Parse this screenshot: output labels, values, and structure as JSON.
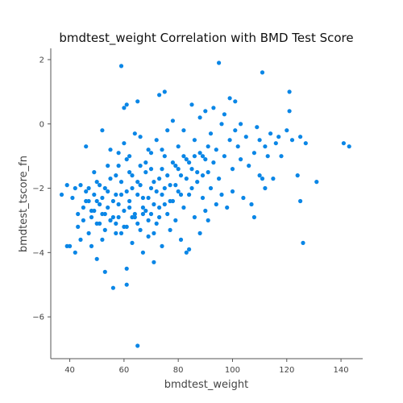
{
  "chart_data": {
    "type": "scatter",
    "title": "bmdtest_weight Correlation with BMD Test Score",
    "xlabel": "bmdtest_weight",
    "ylabel": "bmdtest_tscore_fn",
    "xlim": [
      33,
      148
    ],
    "ylim": [
      -7.3,
      2.35
    ],
    "xticks": [
      40,
      60,
      80,
      100,
      120,
      140
    ],
    "yticks": [
      2,
      0,
      -2,
      -4,
      -6
    ],
    "grid": false,
    "point_color": "#0a86e6",
    "points": [
      {
        "x": 37,
        "y": -2.2
      },
      {
        "x": 39,
        "y": -1.9
      },
      {
        "x": 39,
        "y": -3.8
      },
      {
        "x": 40,
        "y": -3.8
      },
      {
        "x": 41,
        "y": -2.3
      },
      {
        "x": 42,
        "y": -2.0
      },
      {
        "x": 42,
        "y": -4.0
      },
      {
        "x": 43,
        "y": -2.8
      },
      {
        "x": 43,
        "y": -3.2
      },
      {
        "x": 44,
        "y": -1.9
      },
      {
        "x": 44,
        "y": -3.6
      },
      {
        "x": 45,
        "y": -2.6
      },
      {
        "x": 45,
        "y": -3.0
      },
      {
        "x": 46,
        "y": -0.7
      },
      {
        "x": 46,
        "y": -2.1
      },
      {
        "x": 47,
        "y": -3.4
      },
      {
        "x": 47,
        "y": -2.4
      },
      {
        "x": 48,
        "y": -2.7
      },
      {
        "x": 48,
        "y": -3.8
      },
      {
        "x": 49,
        "y": -1.5
      },
      {
        "x": 49,
        "y": -2.2
      },
      {
        "x": 50,
        "y": -3.1
      },
      {
        "x": 50,
        "y": -4.2
      },
      {
        "x": 51,
        "y": -2.5
      },
      {
        "x": 51,
        "y": -1.9
      },
      {
        "x": 52,
        "y": -0.2
      },
      {
        "x": 52,
        "y": -3.6
      },
      {
        "x": 53,
        "y": -4.6
      },
      {
        "x": 53,
        "y": -2.8
      },
      {
        "x": 54,
        "y": -1.3
      },
      {
        "x": 54,
        "y": -2.1
      },
      {
        "x": 55,
        "y": -3.0
      },
      {
        "x": 55,
        "y": -0.8
      },
      {
        "x": 56,
        "y": -5.1
      },
      {
        "x": 56,
        "y": -2.4
      },
      {
        "x": 57,
        "y": -3.4
      },
      {
        "x": 57,
        "y": -1.6
      },
      {
        "x": 58,
        "y": -2.9
      },
      {
        "x": 58,
        "y": -0.9
      },
      {
        "x": 59,
        "y": 1.8
      },
      {
        "x": 59,
        "y": -2.2
      },
      {
        "x": 60,
        "y": -3.2
      },
      {
        "x": 60,
        "y": -0.6
      },
      {
        "x": 60,
        "y": 0.5
      },
      {
        "x": 61,
        "y": -4.5
      },
      {
        "x": 61,
        "y": -1.1
      },
      {
        "x": 61,
        "y": 0.6
      },
      {
        "x": 61,
        "y": -5.0
      },
      {
        "x": 62,
        "y": -2.6
      },
      {
        "x": 62,
        "y": -1.5
      },
      {
        "x": 63,
        "y": -3.7
      },
      {
        "x": 63,
        "y": -2.0
      },
      {
        "x": 64,
        "y": -0.3
      },
      {
        "x": 64,
        "y": -2.9
      },
      {
        "x": 65,
        "y": 0.7
      },
      {
        "x": 65,
        "y": -6.9
      },
      {
        "x": 65,
        "y": -1.8
      },
      {
        "x": 66,
        "y": -3.3
      },
      {
        "x": 66,
        "y": -0.4
      },
      {
        "x": 67,
        "y": -2.3
      },
      {
        "x": 67,
        "y": -4.0
      },
      {
        "x": 68,
        "y": -1.2
      },
      {
        "x": 68,
        "y": -2.7
      },
      {
        "x": 69,
        "y": -0.8
      },
      {
        "x": 69,
        "y": -3.5
      },
      {
        "x": 70,
        "y": -2.0
      },
      {
        "x": 70,
        "y": -1.4
      },
      {
        "x": 71,
        "y": -4.3
      },
      {
        "x": 71,
        "y": -2.5
      },
      {
        "x": 72,
        "y": -0.5
      },
      {
        "x": 72,
        "y": -3.1
      },
      {
        "x": 73,
        "y": 0.9
      },
      {
        "x": 73,
        "y": -1.7
      },
      {
        "x": 74,
        "y": -2.2
      },
      {
        "x": 74,
        "y": -3.8
      },
      {
        "x": 75,
        "y": 1.0
      },
      {
        "x": 75,
        "y": -1.0
      },
      {
        "x": 76,
        "y": -2.8
      },
      {
        "x": 76,
        "y": -0.2
      },
      {
        "x": 77,
        "y": -1.9
      },
      {
        "x": 77,
        "y": -3.3
      },
      {
        "x": 78,
        "y": 0.1
      },
      {
        "x": 78,
        "y": -2.4
      },
      {
        "x": 79,
        "y": -1.3
      },
      {
        "x": 79,
        "y": -3.0
      },
      {
        "x": 80,
        "y": -0.7
      },
      {
        "x": 80,
        "y": -2.1
      },
      {
        "x": 81,
        "y": -3.6
      },
      {
        "x": 81,
        "y": -1.6
      },
      {
        "x": 82,
        "y": -0.2
      },
      {
        "x": 82,
        "y": -2.6
      },
      {
        "x": 83,
        "y": -4.0
      },
      {
        "x": 83,
        "y": -1.1
      },
      {
        "x": 84,
        "y": -3.9
      },
      {
        "x": 84,
        "y": -2.2
      },
      {
        "x": 85,
        "y": 0.6
      },
      {
        "x": 85,
        "y": -1.4
      },
      {
        "x": 86,
        "y": -2.9
      },
      {
        "x": 86,
        "y": -0.5
      },
      {
        "x": 87,
        "y": -1.8
      },
      {
        "x": 88,
        "y": -3.4
      },
      {
        "x": 88,
        "y": 0.2
      },
      {
        "x": 89,
        "y": -2.3
      },
      {
        "x": 89,
        "y": -1.0
      },
      {
        "x": 90,
        "y": -2.7
      },
      {
        "x": 90,
        "y": 0.4
      },
      {
        "x": 91,
        "y": -1.5
      },
      {
        "x": 91,
        "y": -3.0
      },
      {
        "x": 92,
        "y": -0.3
      },
      {
        "x": 92,
        "y": -2.0
      },
      {
        "x": 93,
        "y": 0.5
      },
      {
        "x": 93,
        "y": -1.2
      },
      {
        "x": 94,
        "y": -2.5
      },
      {
        "x": 94,
        "y": -0.8
      },
      {
        "x": 95,
        "y": 1.9
      },
      {
        "x": 95,
        "y": -1.7
      },
      {
        "x": 96,
        "y": 0.0
      },
      {
        "x": 96,
        "y": -2.2
      },
      {
        "x": 97,
        "y": -1.0
      },
      {
        "x": 97,
        "y": 0.3
      },
      {
        "x": 98,
        "y": -2.6
      },
      {
        "x": 99,
        "y": -0.5
      },
      {
        "x": 99,
        "y": 0.8
      },
      {
        "x": 100,
        "y": -1.4
      },
      {
        "x": 100,
        "y": -2.1
      },
      {
        "x": 101,
        "y": 0.7
      },
      {
        "x": 101,
        "y": -0.2
      },
      {
        "x": 102,
        "y": -0.7
      },
      {
        "x": 103,
        "y": -1.1
      },
      {
        "x": 103,
        "y": 0.0
      },
      {
        "x": 104,
        "y": -2.3
      },
      {
        "x": 105,
        "y": -0.4
      },
      {
        "x": 106,
        "y": -1.3
      },
      {
        "x": 107,
        "y": -2.5
      },
      {
        "x": 108,
        "y": -2.9
      },
      {
        "x": 108,
        "y": -0.9
      },
      {
        "x": 109,
        "y": -0.1
      },
      {
        "x": 110,
        "y": -1.6
      },
      {
        "x": 110,
        "y": -0.5
      },
      {
        "x": 111,
        "y": 1.6
      },
      {
        "x": 111,
        "y": -1.7
      },
      {
        "x": 112,
        "y": -0.7
      },
      {
        "x": 112,
        "y": -2.0
      },
      {
        "x": 113,
        "y": -1.0
      },
      {
        "x": 114,
        "y": -0.3
      },
      {
        "x": 115,
        "y": -1.7
      },
      {
        "x": 116,
        "y": -0.6
      },
      {
        "x": 117,
        "y": -0.4
      },
      {
        "x": 118,
        "y": -1.0
      },
      {
        "x": 120,
        "y": -0.2
      },
      {
        "x": 121,
        "y": 0.4
      },
      {
        "x": 121,
        "y": 1.0
      },
      {
        "x": 122,
        "y": -0.5
      },
      {
        "x": 124,
        "y": -1.6
      },
      {
        "x": 125,
        "y": -0.4
      },
      {
        "x": 125,
        "y": -2.4
      },
      {
        "x": 126,
        "y": -3.7
      },
      {
        "x": 127,
        "y": -0.6
      },
      {
        "x": 131,
        "y": -1.8
      },
      {
        "x": 141,
        "y": -0.6
      },
      {
        "x": 143,
        "y": -0.7
      },
      {
        "x": 52,
        "y": -2.3
      },
      {
        "x": 53,
        "y": -2.0
      },
      {
        "x": 54,
        "y": -2.6
      },
      {
        "x": 55,
        "y": -1.7
      },
      {
        "x": 56,
        "y": -2.9
      },
      {
        "x": 57,
        "y": -2.2
      },
      {
        "x": 58,
        "y": -2.5
      },
      {
        "x": 59,
        "y": -1.8
      },
      {
        "x": 60,
        "y": -2.7
      },
      {
        "x": 61,
        "y": -2.1
      },
      {
        "x": 62,
        "y": -2.4
      },
      {
        "x": 63,
        "y": -1.6
      },
      {
        "x": 64,
        "y": -2.8
      },
      {
        "x": 65,
        "y": -2.2
      },
      {
        "x": 66,
        "y": -1.9
      },
      {
        "x": 67,
        "y": -2.6
      },
      {
        "x": 68,
        "y": -1.5
      },
      {
        "x": 69,
        "y": -2.3
      },
      {
        "x": 70,
        "y": -2.8
      },
      {
        "x": 71,
        "y": -1.8
      },
      {
        "x": 72,
        "y": -2.1
      },
      {
        "x": 73,
        "y": -2.6
      },
      {
        "x": 74,
        "y": -1.4
      },
      {
        "x": 75,
        "y": -2.0
      },
      {
        "x": 76,
        "y": -1.6
      },
      {
        "x": 77,
        "y": -2.4
      },
      {
        "x": 78,
        "y": -1.2
      },
      {
        "x": 79,
        "y": -1.9
      },
      {
        "x": 80,
        "y": -1.4
      },
      {
        "x": 81,
        "y": -2.2
      },
      {
        "x": 82,
        "y": -1.0
      },
      {
        "x": 83,
        "y": -1.7
      },
      {
        "x": 84,
        "y": -1.2
      },
      {
        "x": 85,
        "y": -2.0
      },
      {
        "x": 86,
        "y": -1.0
      },
      {
        "x": 87,
        "y": -1.5
      },
      {
        "x": 88,
        "y": -0.9
      },
      {
        "x": 89,
        "y": -1.6
      },
      {
        "x": 90,
        "y": -1.1
      },
      {
        "x": 91,
        "y": -0.7
      },
      {
        "x": 48,
        "y": -2.9
      },
      {
        "x": 50,
        "y": -2.4
      },
      {
        "x": 51,
        "y": -3.1
      },
      {
        "x": 53,
        "y": -3.3
      },
      {
        "x": 55,
        "y": -3.0
      },
      {
        "x": 57,
        "y": -3.1
      },
      {
        "x": 59,
        "y": -3.4
      },
      {
        "x": 61,
        "y": -3.2
      },
      {
        "x": 63,
        "y": -2.9
      },
      {
        "x": 65,
        "y": -3.1
      },
      {
        "x": 67,
        "y": -2.8
      },
      {
        "x": 69,
        "y": -3.0
      },
      {
        "x": 71,
        "y": -3.4
      },
      {
        "x": 73,
        "y": -2.9
      },
      {
        "x": 75,
        "y": -2.5
      },
      {
        "x": 58,
        "y": -1.3
      },
      {
        "x": 62,
        "y": -1.0
      },
      {
        "x": 66,
        "y": -1.3
      },
      {
        "x": 70,
        "y": -0.9
      },
      {
        "x": 74,
        "y": -0.8
      },
      {
        "x": 46,
        "y": -2.4
      },
      {
        "x": 47,
        "y": -2.0
      },
      {
        "x": 49,
        "y": -2.7
      },
      {
        "x": 50,
        "y": -1.8
      },
      {
        "x": 52,
        "y": -2.8
      }
    ]
  }
}
